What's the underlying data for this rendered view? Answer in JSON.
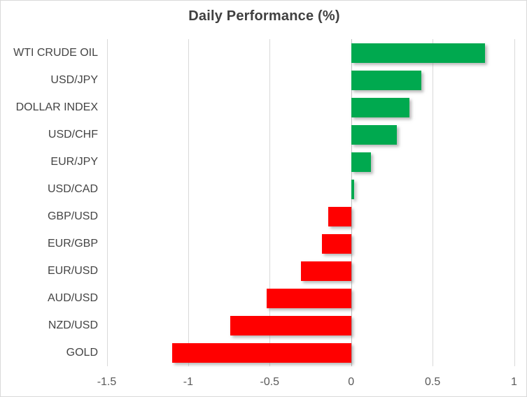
{
  "chart_data": {
    "type": "bar",
    "orientation": "horizontal",
    "title": "Daily Performance (%)",
    "categories": [
      "WTI CRUDE OIL",
      "USD/JPY",
      "DOLLAR INDEX",
      "USD/CHF",
      "EUR/JPY",
      "USD/CAD",
      "GBP/USD",
      "EUR/GBP",
      "EUR/USD",
      "AUD/USD",
      "NZD/USD",
      "GOLD"
    ],
    "values": [
      0.82,
      0.43,
      0.36,
      0.28,
      0.12,
      0.02,
      -0.14,
      -0.18,
      -0.31,
      -0.52,
      -0.74,
      -1.1
    ],
    "xlabel": "",
    "ylabel": "",
    "xlim": [
      -1.5,
      1
    ],
    "xticks": [
      -1.5,
      -1,
      -0.5,
      0,
      0.5,
      1
    ],
    "xtick_labels": [
      "-1.5",
      "-1",
      "-0.5",
      "0",
      "0.5",
      "1"
    ],
    "grid": true,
    "legend": false,
    "colors": {
      "positive": "#00a94f",
      "negative": "#ff0000",
      "gridline": "#d9d9d9",
      "axis_line": "#bfbfbf",
      "title_text": "#404040",
      "label_text": "#595959"
    }
  }
}
